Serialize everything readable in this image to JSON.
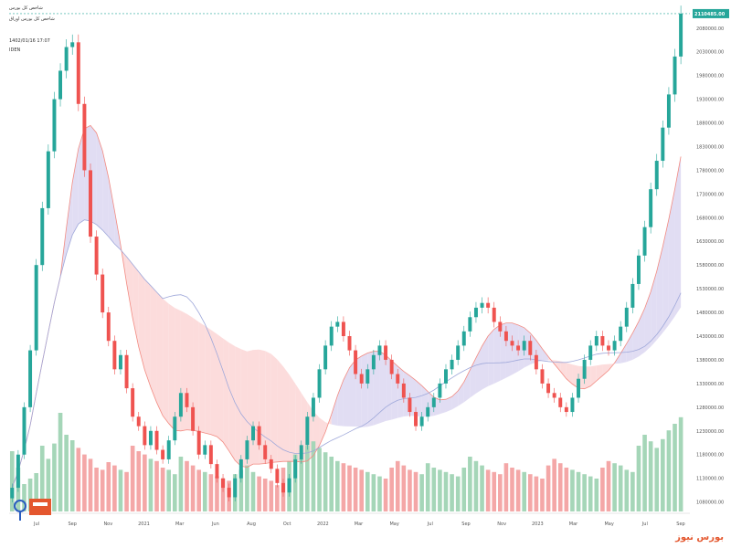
{
  "header": {
    "symbol_line": "شاخص کل بورس",
    "sub_line": "شاخص کل بورس اوراق",
    "time_line": "1402/01/16 17:07",
    "ind_line": "IDEN"
  },
  "watermark": {
    "text": "بورس نیوز"
  },
  "colors": {
    "up": "#26a69a",
    "down": "#ef5350",
    "vol_up": "#a5d6b8",
    "vol_down": "#f4a7a7",
    "tenkan": "#f28b82",
    "kijun": "#9fa8da",
    "cloud_bull": "#d9d4f0",
    "cloud_bear": "#fbd3d3",
    "last_line": "#26a69a"
  },
  "chart_data": {
    "type": "candlestick",
    "title": "",
    "xlabel": "",
    "ylabel": "",
    "ylim": [
      1060000,
      2120000
    ],
    "y_ticks": [
      "2080000.00",
      "2030000.00",
      "1980000.00",
      "1930000.00",
      "1880000.00",
      "1830000.00",
      "1780000.00",
      "1730000.00",
      "1680000.00",
      "1630000.00",
      "1580000.00",
      "1530000.00",
      "1480000.00",
      "1430000.00",
      "1380000.00",
      "1330000.00",
      "1280000.00",
      "1230000.00",
      "1180000.00",
      "1130000.00",
      "1080000.00"
    ],
    "x_ticks": [
      "Jul",
      "Sep",
      "Nov",
      "2021",
      "Mar",
      "Jun",
      "Aug",
      "Oct",
      "2022",
      "Mar",
      "May",
      "Jul",
      "Sep",
      "Nov",
      "2023",
      "Mar",
      "May",
      "Jul",
      "Sep"
    ],
    "last_price": "2110485.00",
    "closes": [
      1110000,
      1180000,
      1280000,
      1400000,
      1580000,
      1700000,
      1820000,
      1930000,
      1990000,
      2040000,
      2050000,
      1920000,
      1780000,
      1640000,
      1560000,
      1480000,
      1420000,
      1360000,
      1390000,
      1320000,
      1260000,
      1240000,
      1200000,
      1230000,
      1190000,
      1170000,
      1210000,
      1260000,
      1310000,
      1280000,
      1230000,
      1180000,
      1200000,
      1160000,
      1130000,
      1110000,
      1090000,
      1130000,
      1170000,
      1210000,
      1240000,
      1200000,
      1170000,
      1150000,
      1120000,
      1100000,
      1130000,
      1170000,
      1200000,
      1260000,
      1300000,
      1360000,
      1410000,
      1450000,
      1460000,
      1430000,
      1400000,
      1350000,
      1330000,
      1360000,
      1390000,
      1410000,
      1380000,
      1350000,
      1330000,
      1300000,
      1270000,
      1240000,
      1260000,
      1280000,
      1300000,
      1330000,
      1360000,
      1380000,
      1410000,
      1440000,
      1470000,
      1490000,
      1500000,
      1490000,
      1460000,
      1440000,
      1420000,
      1410000,
      1400000,
      1420000,
      1390000,
      1360000,
      1330000,
      1310000,
      1300000,
      1280000,
      1270000,
      1300000,
      1340000,
      1380000,
      1410000,
      1430000,
      1410000,
      1400000,
      1420000,
      1450000,
      1490000,
      1540000,
      1600000,
      1660000,
      1740000,
      1800000,
      1870000,
      1940000,
      2020000,
      2110485
    ],
    "volumes": [
      55,
      40,
      25,
      30,
      35,
      60,
      48,
      62,
      90,
      70,
      65,
      58,
      52,
      48,
      40,
      38,
      45,
      42,
      38,
      36,
      60,
      55,
      52,
      48,
      46,
      40,
      38,
      34,
      50,
      46,
      42,
      38,
      36,
      34,
      32,
      30,
      28,
      34,
      38,
      42,
      36,
      32,
      30,
      28,
      24,
      40,
      46,
      52,
      48,
      60,
      64,
      58,
      54,
      50,
      46,
      44,
      42,
      40,
      38,
      36,
      34,
      32,
      30,
      40,
      46,
      42,
      38,
      36,
      34,
      44,
      40,
      38,
      36,
      34,
      32,
      40,
      50,
      46,
      42,
      38,
      36,
      34,
      44,
      40,
      38,
      36,
      34,
      32,
      30,
      42,
      48,
      44,
      40,
      38,
      36,
      34,
      32,
      30,
      40,
      46,
      44,
      42,
      38,
      36,
      60,
      70,
      64,
      58,
      66,
      74,
      80,
      86
    ]
  }
}
